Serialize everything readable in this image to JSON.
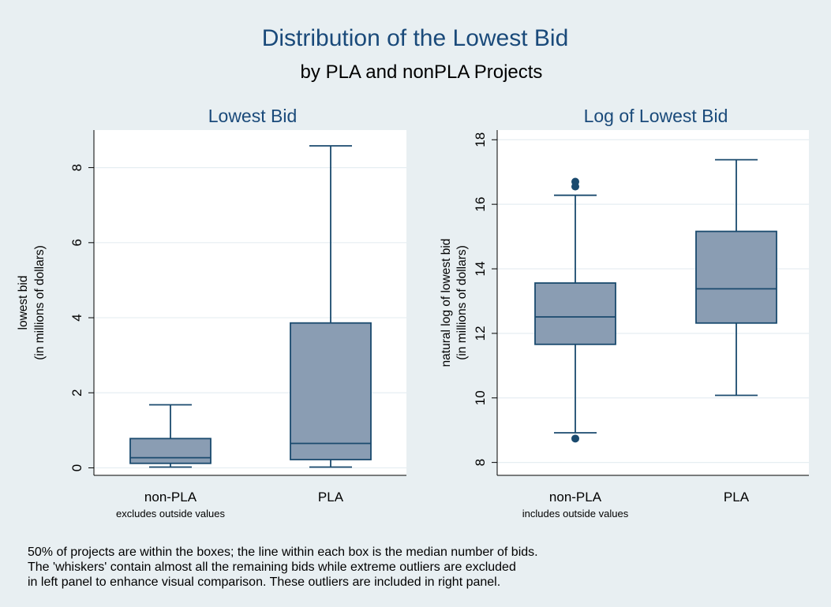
{
  "title": "Distribution of the Lowest Bid",
  "subtitle": "by PLA and nonPLA Projects",
  "footnote": [
    "50% of projects are within the boxes; the line within each box is the median number of bids.",
    "The 'whiskers' contain almost all the remaining bids while extreme outliers are excluded",
    " in left panel to enhance visual comparison. These outliers are included in right panel."
  ],
  "colors": {
    "background": "#e8eff2",
    "plot_background": "#ffffff",
    "box_fill": "#8a9db3",
    "box_stroke": "#1a4a6e",
    "title": "#1a4a7a",
    "grid": "#e6eef2"
  },
  "chart_data": [
    {
      "type": "box",
      "title": "Lowest Bid",
      "ylabel": [
        "lowest bid",
        "(in millions of dollars)"
      ],
      "xlabel": "",
      "ylim": [
        -0.2,
        9.0
      ],
      "yticks": [
        0,
        2,
        4,
        6,
        8
      ],
      "grid": true,
      "categories": [
        "non-PLA",
        "PLA"
      ],
      "category_note": "excludes outside values",
      "series": [
        {
          "category": "non-PLA",
          "whisker_low": 0.02,
          "q1": 0.12,
          "median": 0.27,
          "q3": 0.78,
          "whisker_high": 1.68,
          "outliers": []
        },
        {
          "category": "PLA",
          "whisker_low": 0.02,
          "q1": 0.22,
          "median": 0.65,
          "q3": 3.86,
          "whisker_high": 8.58,
          "outliers": []
        }
      ]
    },
    {
      "type": "box",
      "title": "Log of Lowest Bid",
      "ylabel": [
        "natural log of lowest bid",
        "(in millions of dollars)"
      ],
      "xlabel": "",
      "ylim": [
        7.6,
        18.3
      ],
      "yticks": [
        8,
        10,
        12,
        14,
        16,
        18
      ],
      "grid": true,
      "categories": [
        "non-PLA",
        "PLA"
      ],
      "category_note": "includes outside values",
      "series": [
        {
          "category": "non-PLA",
          "whisker_low": 8.92,
          "q1": 11.66,
          "median": 12.51,
          "q3": 13.56,
          "whisker_high": 16.28,
          "outliers": [
            8.74,
            16.55,
            16.7
          ]
        },
        {
          "category": "PLA",
          "whisker_low": 10.08,
          "q1": 12.32,
          "median": 13.38,
          "q3": 15.16,
          "whisker_high": 17.38,
          "outliers": []
        }
      ]
    }
  ]
}
